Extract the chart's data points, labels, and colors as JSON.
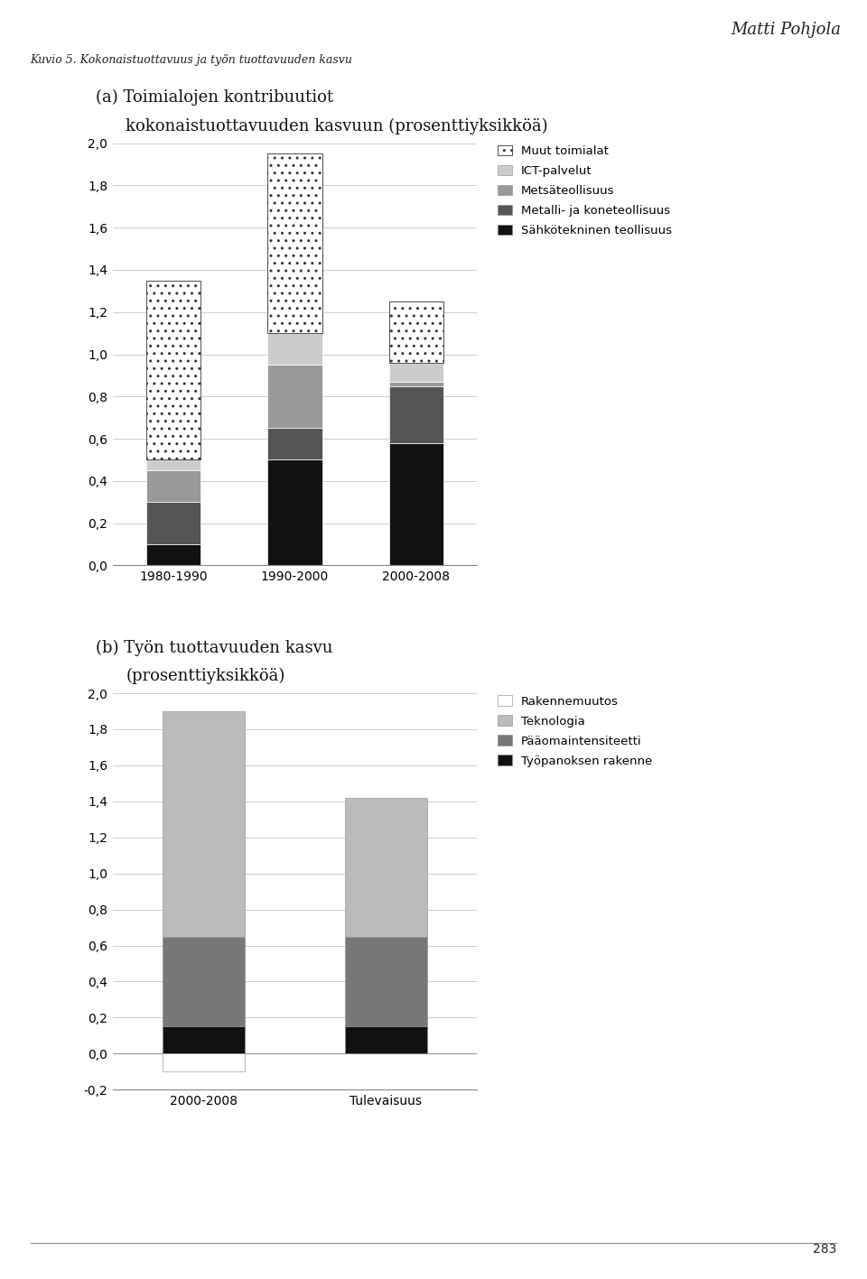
{
  "header_text": "Matti Pohjola",
  "figure_title": "Kuvio 5. Kokonaistuottavuus ja työn tuottavuuden kasvu",
  "chart_a": {
    "title_line1": "(a) Toimialojen kontribuutiot",
    "title_line2": "kokonaistuottavuuden kasvuun (prosenttiyksikköä)",
    "categories": [
      "1980-1990",
      "1990-2000",
      "2000-2008"
    ],
    "series_order": [
      "Sähkötekninen teollisuus",
      "Metalli- ja koneteollisuus",
      "Metsäteollisuus",
      "ICT-palvelut",
      "Muut toimialat"
    ],
    "series": {
      "Sähkötekninen teollisuus": [
        0.1,
        0.5,
        0.58
      ],
      "Metalli- ja koneteollisuus": [
        0.2,
        0.15,
        0.27
      ],
      "Metsäteollisuus": [
        0.15,
        0.3,
        0.02
      ],
      "ICT-palvelut": [
        0.05,
        0.15,
        0.09
      ],
      "Muut toimialat": [
        0.85,
        0.85,
        0.29
      ]
    },
    "colors": {
      "Sähkötekninen teollisuus": "#111111",
      "Metalli- ja koneteollisuus": "#555555",
      "Metsäteollisuus": "#999999",
      "ICT-palvelut": "#cccccc",
      "Muut toimialat": "dotted"
    },
    "ylim": [
      0.0,
      2.0
    ],
    "yticks": [
      0.0,
      0.2,
      0.4,
      0.6,
      0.8,
      1.0,
      1.2,
      1.4,
      1.6,
      1.8,
      2.0
    ]
  },
  "chart_b": {
    "title_line1": "(b) Työn tuottavuuden kasvu",
    "title_line2": "(prosenttiyksikköä)",
    "categories": [
      "2000-2008",
      "Tulevaisuus"
    ],
    "series_order": [
      "Työpanoksen rakenne",
      "Pääomaintensiteetti",
      "Teknologia",
      "Rakennemuutos"
    ],
    "series": {
      "Työpanoksen rakenne": [
        0.15,
        0.15
      ],
      "Pääomaintensiteetti": [
        0.5,
        0.5
      ],
      "Teknologia": [
        1.25,
        0.77
      ],
      "Rakennemuutos": [
        -0.1,
        0.0
      ]
    },
    "colors": {
      "Työpanoksen rakenne": "#111111",
      "Pääomaintensiteetti": "#777777",
      "Teknologia": "#bbbbbb",
      "Rakennemuutos": "#ffffff"
    },
    "ylim": [
      -0.2,
      2.0
    ],
    "yticks": [
      -0.2,
      0.0,
      0.2,
      0.4,
      0.6,
      0.8,
      1.0,
      1.2,
      1.4,
      1.6,
      1.8,
      2.0
    ]
  },
  "bg": "#ffffff",
  "bar_width": 0.45,
  "font_size_title": 13,
  "font_size_tick": 10,
  "font_size_legend": 9.5,
  "font_size_header": 13,
  "font_size_figtitle": 9
}
